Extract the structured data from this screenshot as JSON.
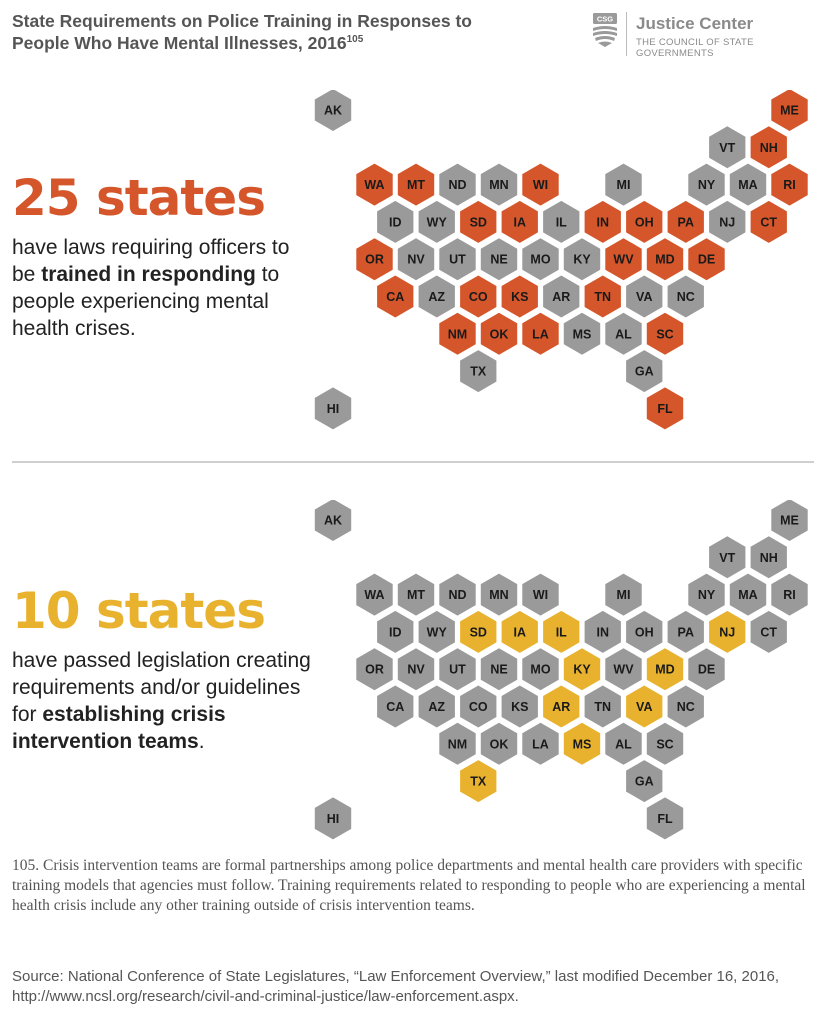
{
  "title": {
    "line1": "State Requirements on Police Training in Responses to",
    "line2": "People Who Have Mental Illnesses, 2016",
    "footnote_ref": "105"
  },
  "logo": {
    "mark": "CSG",
    "name": "Justice Center",
    "subtitle": "THE COUNCIL OF STATE GOVERNMENTS"
  },
  "colors": {
    "gray": "#9a9a9a",
    "orange": "#d4562a",
    "yellow": "#e8b22e",
    "label": "#1a1a1a"
  },
  "section1": {
    "headline": "25 states",
    "desc_before": "have laws requiring officers to be ",
    "desc_bold": "trained in responding",
    "desc_after": " to people experiencing mental health crises.",
    "highlighted": [
      "ME",
      "NH",
      "WA",
      "MT",
      "WI",
      "RI",
      "SD",
      "IA",
      "IN",
      "OH",
      "PA",
      "CT",
      "OR",
      "WV",
      "MD",
      "DE",
      "CA",
      "CO",
      "KS",
      "TN",
      "NM",
      "OK",
      "LA",
      "SC",
      "FL"
    ]
  },
  "section2": {
    "headline": "10 states",
    "desc_before": "have passed legislation creating requirements and/or guidelines for ",
    "desc_bold": "establishing crisis intervention teams",
    "desc_after": ".",
    "highlighted": [
      "SD",
      "IA",
      "IL",
      "NJ",
      "KY",
      "MD",
      "AR",
      "VA",
      "MS",
      "TX"
    ]
  },
  "states": [
    {
      "code": "AK",
      "row": 0,
      "col": 0
    },
    {
      "code": "ME",
      "row": 0,
      "col": 11
    },
    {
      "code": "VT",
      "row": 1,
      "col": 9.5
    },
    {
      "code": "NH",
      "row": 1,
      "col": 10.5
    },
    {
      "code": "WA",
      "row": 2,
      "col": 1
    },
    {
      "code": "MT",
      "row": 2,
      "col": 2
    },
    {
      "code": "ND",
      "row": 2,
      "col": 3
    },
    {
      "code": "MN",
      "row": 2,
      "col": 4
    },
    {
      "code": "WI",
      "row": 2,
      "col": 5
    },
    {
      "code": "MI",
      "row": 2,
      "col": 7
    },
    {
      "code": "NY",
      "row": 2,
      "col": 9
    },
    {
      "code": "MA",
      "row": 2,
      "col": 10
    },
    {
      "code": "RI",
      "row": 2,
      "col": 11
    },
    {
      "code": "ID",
      "row": 3,
      "col": 1.5
    },
    {
      "code": "WY",
      "row": 3,
      "col": 2.5
    },
    {
      "code": "SD",
      "row": 3,
      "col": 3.5
    },
    {
      "code": "IA",
      "row": 3,
      "col": 4.5
    },
    {
      "code": "IL",
      "row": 3,
      "col": 5.5
    },
    {
      "code": "IN",
      "row": 3,
      "col": 6.5
    },
    {
      "code": "OH",
      "row": 3,
      "col": 7.5
    },
    {
      "code": "PA",
      "row": 3,
      "col": 8.5
    },
    {
      "code": "NJ",
      "row": 3,
      "col": 9.5
    },
    {
      "code": "CT",
      "row": 3,
      "col": 10.5
    },
    {
      "code": "OR",
      "row": 4,
      "col": 1
    },
    {
      "code": "NV",
      "row": 4,
      "col": 2
    },
    {
      "code": "UT",
      "row": 4,
      "col": 3
    },
    {
      "code": "NE",
      "row": 4,
      "col": 4
    },
    {
      "code": "MO",
      "row": 4,
      "col": 5
    },
    {
      "code": "KY",
      "row": 4,
      "col": 6
    },
    {
      "code": "WV",
      "row": 4,
      "col": 7
    },
    {
      "code": "MD",
      "row": 4,
      "col": 8
    },
    {
      "code": "DE",
      "row": 4,
      "col": 9
    },
    {
      "code": "CA",
      "row": 5,
      "col": 1.5
    },
    {
      "code": "AZ",
      "row": 5,
      "col": 2.5
    },
    {
      "code": "CO",
      "row": 5,
      "col": 3.5
    },
    {
      "code": "KS",
      "row": 5,
      "col": 4.5
    },
    {
      "code": "AR",
      "row": 5,
      "col": 5.5
    },
    {
      "code": "TN",
      "row": 5,
      "col": 6.5
    },
    {
      "code": "VA",
      "row": 5,
      "col": 7.5
    },
    {
      "code": "NC",
      "row": 5,
      "col": 8.5
    },
    {
      "code": "NM",
      "row": 6,
      "col": 3
    },
    {
      "code": "OK",
      "row": 6,
      "col": 4
    },
    {
      "code": "LA",
      "row": 6,
      "col": 5
    },
    {
      "code": "MS",
      "row": 6,
      "col": 6
    },
    {
      "code": "AL",
      "row": 6,
      "col": 7
    },
    {
      "code": "SC",
      "row": 6,
      "col": 8
    },
    {
      "code": "TX",
      "row": 7,
      "col": 3.5
    },
    {
      "code": "GA",
      "row": 7,
      "col": 7.5
    },
    {
      "code": "HI",
      "row": 8,
      "col": 0
    },
    {
      "code": "FL",
      "row": 8,
      "col": 8
    }
  ],
  "footnote": "105. Crisis intervention teams are formal partnerships among police departments and mental health care providers with specific training models that agencies must follow. Training requirements related to responding to people who are experiencing a mental health crisis include any other training outside of crisis intervention teams.",
  "source": "Source: National Conference of State Legislatures, “Law Enforcement Overview,” last modified December 16, 2016, http://www.ncsl.org/research/civil-and-criminal-justice/law-enforcement.aspx."
}
